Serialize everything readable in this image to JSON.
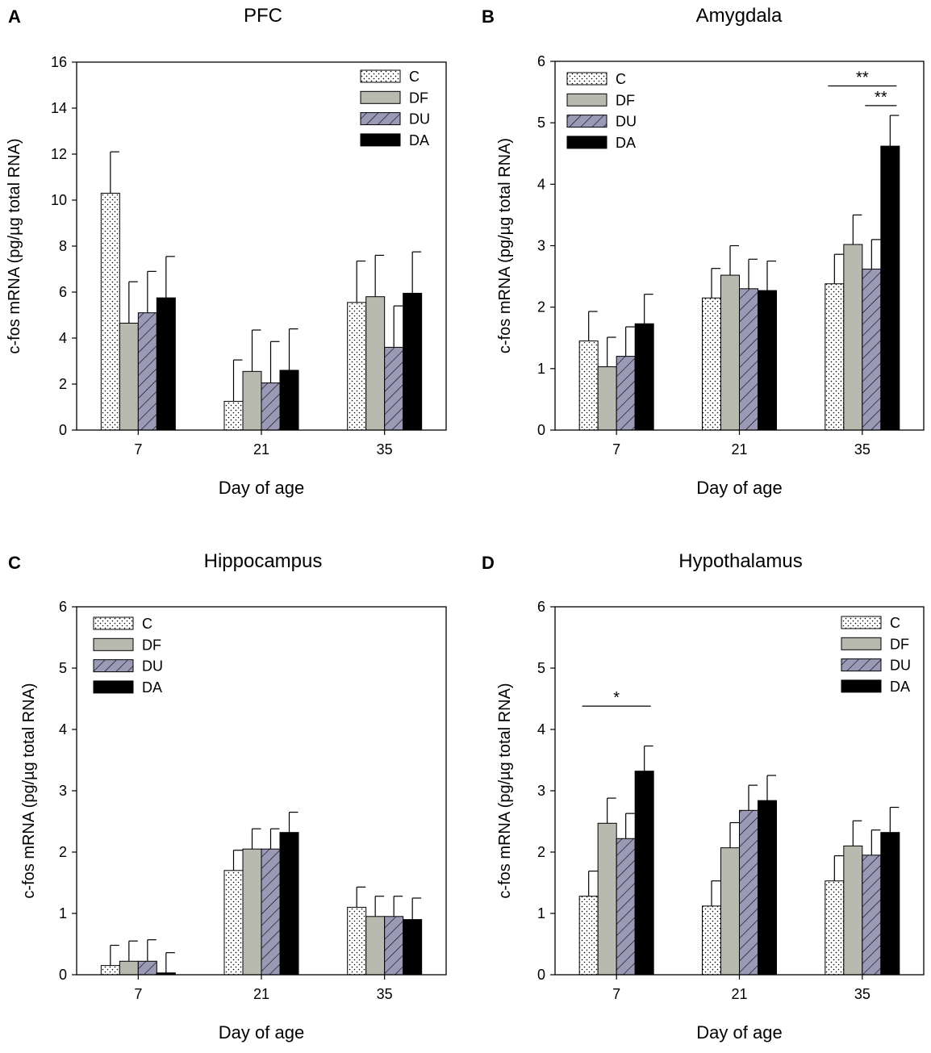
{
  "colors": {
    "C": "#ffffff",
    "DF": "#b9baaf",
    "DU": "#9a9ab6",
    "DA": "#000000",
    "axis": "#000000"
  },
  "legend_labels": [
    "C",
    "DF",
    "DU",
    "DA"
  ],
  "chart_data": [
    {
      "letter": "A",
      "type": "bar",
      "title": "PFC",
      "xlabel": "Day of age",
      "ylabel": "c-fos mRNA (pg/µg total RNA)",
      "categories": [
        "7",
        "21",
        "35"
      ],
      "ylim": [
        0,
        16
      ],
      "yticks": [
        "0",
        "2",
        "4",
        "6",
        "8",
        "10",
        "12",
        "14",
        "16"
      ],
      "legend": "top-right",
      "series": [
        {
          "name": "C",
          "values": [
            10.3,
            1.25,
            5.55
          ],
          "errors": [
            1.8,
            1.8,
            1.8
          ]
        },
        {
          "name": "DF",
          "values": [
            4.65,
            2.55,
            5.8
          ],
          "errors": [
            1.8,
            1.8,
            1.8
          ]
        },
        {
          "name": "DU",
          "values": [
            5.1,
            2.05,
            3.6
          ],
          "errors": [
            1.8,
            1.8,
            1.8
          ]
        },
        {
          "name": "DA",
          "values": [
            5.75,
            2.6,
            5.95
          ],
          "errors": [
            1.8,
            1.8,
            1.8
          ]
        }
      ],
      "significance": []
    },
    {
      "letter": "B",
      "type": "bar",
      "title": "Amygdala",
      "xlabel": "Day of age",
      "ylabel": "c-fos mRNA (pg/µg total RNA)",
      "categories": [
        "7",
        "21",
        "35"
      ],
      "ylim": [
        0,
        6
      ],
      "yticks": [
        "0",
        "1",
        "2",
        "3",
        "4",
        "5",
        "6"
      ],
      "legend": "top-left",
      "series": [
        {
          "name": "C",
          "values": [
            1.45,
            2.15,
            2.38
          ],
          "errors": [
            0.48,
            0.48,
            0.48
          ]
        },
        {
          "name": "DF",
          "values": [
            1.03,
            2.52,
            3.02
          ],
          "errors": [
            0.48,
            0.48,
            0.48
          ]
        },
        {
          "name": "DU",
          "values": [
            1.2,
            2.3,
            2.62
          ],
          "errors": [
            0.48,
            0.48,
            0.48
          ]
        },
        {
          "name": "DA",
          "values": [
            1.73,
            2.27,
            4.62
          ],
          "errors": [
            0.48,
            0.48,
            0.5
          ]
        }
      ],
      "significance": [
        {
          "label": "**",
          "category": 2,
          "from": 0,
          "to": 3,
          "y": 5.6
        },
        {
          "label": "**",
          "category": 2,
          "from": 2,
          "to": 3,
          "y": 5.28
        }
      ]
    },
    {
      "letter": "C",
      "type": "bar",
      "title": "Hippocampus",
      "xlabel": "Day of age",
      "ylabel": "c-fos mRNA (pg/µg total RNA)",
      "categories": [
        "7",
        "21",
        "35"
      ],
      "ylim": [
        0,
        6
      ],
      "yticks": [
        "0",
        "1",
        "2",
        "3",
        "4",
        "5",
        "6"
      ],
      "legend": "top-left",
      "series": [
        {
          "name": "C",
          "values": [
            0.15,
            1.7,
            1.1
          ],
          "errors": [
            0.33,
            0.33,
            0.33
          ]
        },
        {
          "name": "DF",
          "values": [
            0.22,
            2.05,
            0.95
          ],
          "errors": [
            0.33,
            0.33,
            0.33
          ]
        },
        {
          "name": "DU",
          "values": [
            0.22,
            2.05,
            0.95
          ],
          "errors": [
            0.35,
            0.33,
            0.33
          ]
        },
        {
          "name": "DA",
          "values": [
            0.03,
            2.32,
            0.9
          ],
          "errors": [
            0.33,
            0.33,
            0.35
          ]
        }
      ],
      "significance": []
    },
    {
      "letter": "D",
      "type": "bar",
      "title": "Hypothalamus",
      "xlabel": "Day of age",
      "ylabel": "c-fos mRNA (pg/µg total RNA)",
      "categories": [
        "7",
        "21",
        "35"
      ],
      "ylim": [
        0,
        6
      ],
      "yticks": [
        "0",
        "1",
        "2",
        "3",
        "4",
        "5",
        "6"
      ],
      "legend": "top-right",
      "series": [
        {
          "name": "C",
          "values": [
            1.28,
            1.12,
            1.53
          ],
          "errors": [
            0.41,
            0.41,
            0.41
          ]
        },
        {
          "name": "DF",
          "values": [
            2.47,
            2.07,
            2.1
          ],
          "errors": [
            0.41,
            0.41,
            0.41
          ]
        },
        {
          "name": "DU",
          "values": [
            2.22,
            2.68,
            1.95
          ],
          "errors": [
            0.41,
            0.41,
            0.41
          ]
        },
        {
          "name": "DA",
          "values": [
            3.32,
            2.84,
            2.32
          ],
          "errors": [
            0.41,
            0.41,
            0.41
          ]
        }
      ],
      "significance": [
        {
          "label": "*",
          "category": 0,
          "from": 0,
          "to": 3,
          "y": 4.38
        }
      ]
    }
  ]
}
